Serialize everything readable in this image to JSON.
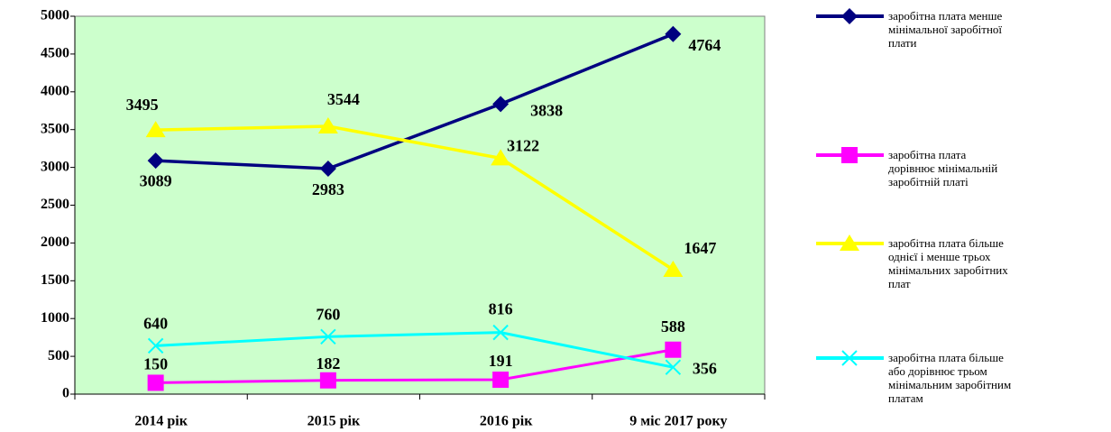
{
  "chart_data": {
    "type": "line",
    "categories": [
      "2014 рік",
      "2015 рік",
      "2016 рік",
      "9 міс 2017 року"
    ],
    "series": [
      {
        "name": "заробітна плата менше мінімальної заробітної плати",
        "color": "#000080",
        "marker": "diamond",
        "values": [
          3089,
          2983,
          3838,
          4764
        ]
      },
      {
        "name": "заробітна плата дорівнює мінімальній заробітній платі",
        "color": "#ff00ff",
        "marker": "square",
        "values": [
          150,
          182,
          191,
          588
        ]
      },
      {
        "name": "заробітна плата більше однієї і менше трьох мінімальних заробітних плат",
        "color": "#ffff00",
        "marker": "triangle",
        "values": [
          3495,
          3544,
          3122,
          1647
        ]
      },
      {
        "name": "заробітна плата більше або дорівнює трьом мінімальним заробітним платам",
        "color": "#00ffff",
        "marker": "x",
        "values": [
          640,
          760,
          816,
          356
        ]
      }
    ],
    "ylim": [
      0,
      5000
    ],
    "yticks": [
      0,
      500,
      1000,
      1500,
      2000,
      2500,
      3000,
      3500,
      4000,
      4500,
      5000
    ],
    "grid": false,
    "legend": "right"
  }
}
